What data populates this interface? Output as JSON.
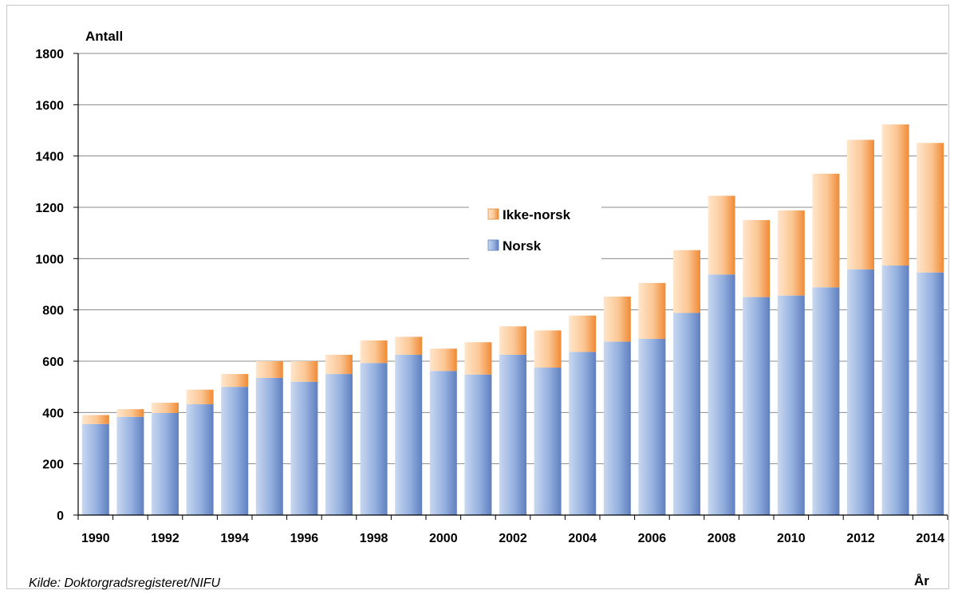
{
  "chart_data": {
    "type": "bar",
    "stacked": true,
    "categories": [
      "1990",
      "1991",
      "1992",
      "1993",
      "1994",
      "1995",
      "1996",
      "1997",
      "1998",
      "1999",
      "2000",
      "2001",
      "2002",
      "2003",
      "2004",
      "2005",
      "2006",
      "2007",
      "2008",
      "2009",
      "2010",
      "2011",
      "2012",
      "2013",
      "2014"
    ],
    "x_tick_labels": [
      "1990",
      "1992",
      "1994",
      "1996",
      "1998",
      "2000",
      "2002",
      "2004",
      "2006",
      "2008",
      "2010",
      "2012",
      "2014"
    ],
    "series": [
      {
        "name": "Norsk",
        "color": "#7a9ad0",
        "values": [
          355,
          383,
          398,
          432,
          500,
          535,
          520,
          550,
          593,
          625,
          562,
          548,
          625,
          575,
          636,
          676,
          687,
          788,
          938,
          850,
          856,
          888,
          958,
          973,
          946
        ]
      },
      {
        "name": "Ikke-norsk",
        "color": "#f3a45a",
        "values": [
          35,
          30,
          40,
          57,
          50,
          65,
          80,
          75,
          88,
          70,
          87,
          126,
          111,
          145,
          142,
          176,
          218,
          245,
          307,
          300,
          332,
          443,
          505,
          550,
          505
        ]
      }
    ],
    "ylabel": "Antall",
    "xlabel": "År",
    "ylim": [
      0,
      1800
    ],
    "yticks": [
      "0",
      "200",
      "400",
      "600",
      "800",
      "1000",
      "1200",
      "1400",
      "1600",
      "1800"
    ],
    "grid": true,
    "legend_placement": "center",
    "source": "Kilde:  Doktorgradsregisteret/NIFU"
  }
}
